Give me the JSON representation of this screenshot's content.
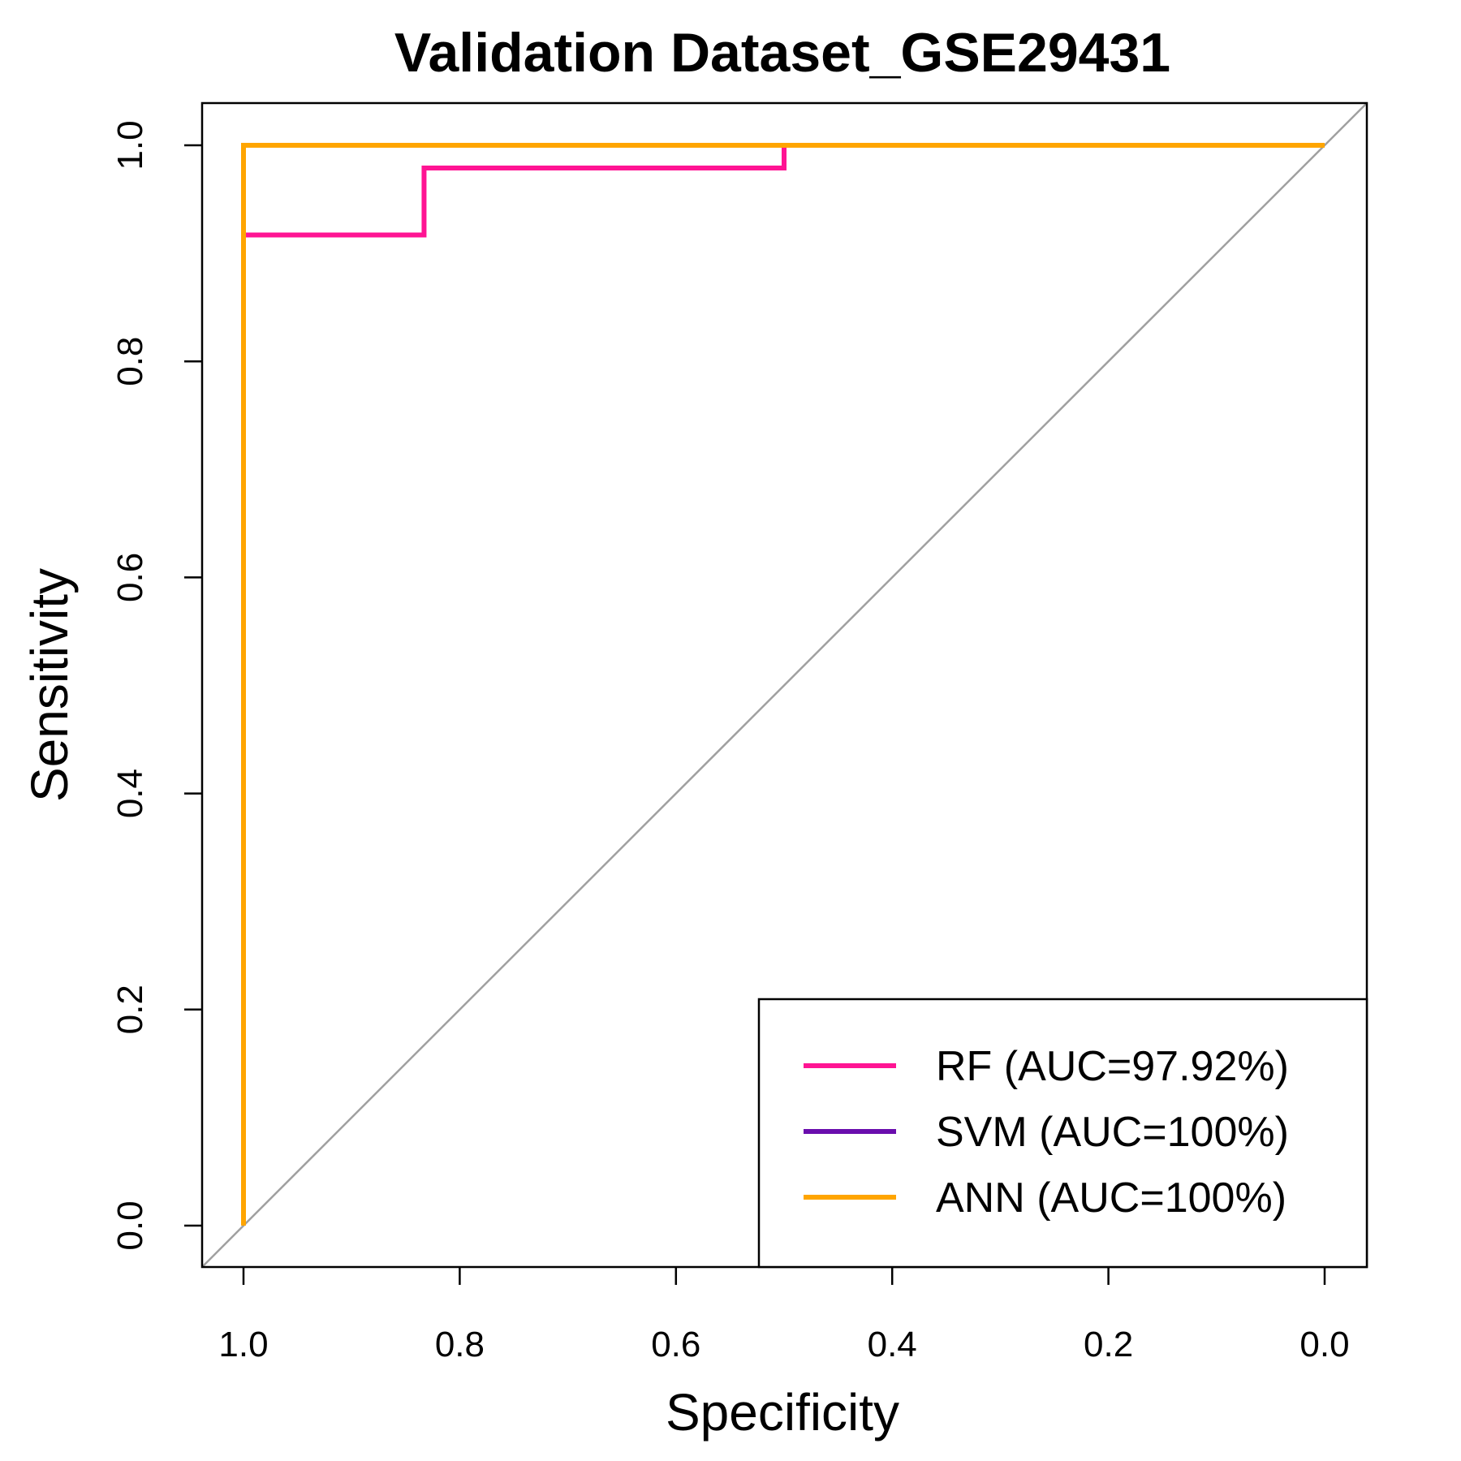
{
  "chart_data": {
    "type": "line",
    "title": "Validation Dataset_GSE29431",
    "xlabel": "Specificity",
    "ylabel": "Sensitivity",
    "xlim": [
      1.0,
      0.0
    ],
    "ylim": [
      0.0,
      1.0
    ],
    "x_reversed": true,
    "x_ticks": [
      "1.0",
      "0.8",
      "0.6",
      "0.4",
      "0.2",
      "0.0"
    ],
    "y_ticks": [
      "0.0",
      "0.2",
      "0.4",
      "0.6",
      "0.8",
      "1.0"
    ],
    "grid": false,
    "reference_line": {
      "from": [
        1.0,
        0.0
      ],
      "to": [
        0.0,
        1.0
      ],
      "color": "#a0a0a0"
    },
    "legend_position": "bottom-right",
    "series": [
      {
        "name": "RF (AUC=97.92%)",
        "color": "#ff1493",
        "points": [
          [
            1.0,
            0.0
          ],
          [
            1.0,
            0.917
          ],
          [
            0.833,
            0.917
          ],
          [
            0.833,
            0.979
          ],
          [
            0.5,
            0.979
          ],
          [
            0.5,
            1.0
          ],
          [
            0.0,
            1.0
          ]
        ]
      },
      {
        "name": "SVM (AUC=100%)",
        "color": "#6a0dad",
        "points": [
          [
            1.0,
            0.0
          ],
          [
            1.0,
            1.0
          ],
          [
            0.0,
            1.0
          ]
        ]
      },
      {
        "name": "ANN (AUC=100%)",
        "color": "#ffa500",
        "points": [
          [
            1.0,
            0.0
          ],
          [
            1.0,
            1.0
          ],
          [
            0.0,
            1.0
          ]
        ]
      }
    ]
  }
}
